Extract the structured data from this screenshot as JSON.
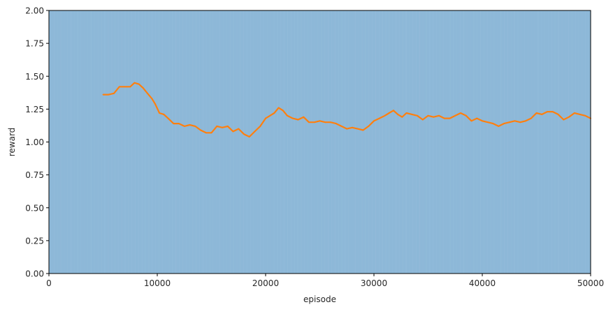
{
  "chart_data": {
    "type": "line",
    "title": "",
    "xlabel": "episode",
    "ylabel": "reward",
    "xlim": [
      0,
      50000
    ],
    "ylim": [
      0,
      2.0
    ],
    "xticks": [
      0,
      10000,
      20000,
      30000,
      40000,
      50000
    ],
    "xtick_labels": [
      "0",
      "10000",
      "20000",
      "30000",
      "40000",
      "50000"
    ],
    "yticks": [
      0,
      0.25,
      0.5,
      0.75,
      1.0,
      1.25,
      1.5,
      1.75,
      2.0
    ],
    "ytick_labels": [
      "0.00",
      "0.25",
      "0.50",
      "0.75",
      "1.00",
      "1.25",
      "1.50",
      "1.75",
      "2.00"
    ],
    "grid": false,
    "background_fill": {
      "description": "dense raw per-episode reward shading covering full range",
      "y_range": [
        0,
        2.0
      ],
      "color": "#8db8d8"
    },
    "series": [
      {
        "color": "#ff7f0e",
        "x": [
          5000,
          5500,
          6000,
          6500,
          7000,
          7500,
          7900,
          8300,
          8700,
          9100,
          9500,
          9800,
          10200,
          10600,
          11000,
          11500,
          12000,
          12500,
          13000,
          13500,
          14000,
          14500,
          15000,
          15500,
          16000,
          16500,
          17000,
          17500,
          18000,
          18500,
          19000,
          19500,
          20000,
          20400,
          20800,
          21200,
          21600,
          22000,
          22500,
          23000,
          23500,
          24000,
          24500,
          25000,
          25500,
          26000,
          26500,
          27000,
          27500,
          28000,
          28500,
          29000,
          29500,
          30000,
          30500,
          31000,
          31400,
          31800,
          32200,
          32600,
          33000,
          33500,
          34000,
          34500,
          35000,
          35500,
          36000,
          36500,
          37000,
          37500,
          38000,
          38500,
          39000,
          39500,
          40000,
          40500,
          41000,
          41500,
          42000,
          42500,
          43000,
          43500,
          44000,
          44500,
          45000,
          45500,
          46000,
          46500,
          47000,
          47500,
          48000,
          48500,
          49000,
          49500,
          50000
        ],
        "y": [
          1.36,
          1.36,
          1.37,
          1.42,
          1.42,
          1.42,
          1.45,
          1.44,
          1.41,
          1.37,
          1.33,
          1.29,
          1.22,
          1.21,
          1.18,
          1.14,
          1.14,
          1.12,
          1.13,
          1.12,
          1.09,
          1.07,
          1.07,
          1.12,
          1.11,
          1.12,
          1.08,
          1.1,
          1.06,
          1.04,
          1.08,
          1.12,
          1.18,
          1.2,
          1.22,
          1.26,
          1.24,
          1.2,
          1.18,
          1.17,
          1.19,
          1.15,
          1.15,
          1.16,
          1.15,
          1.15,
          1.14,
          1.12,
          1.1,
          1.11,
          1.1,
          1.09,
          1.12,
          1.16,
          1.18,
          1.2,
          1.22,
          1.24,
          1.21,
          1.19,
          1.22,
          1.21,
          1.2,
          1.17,
          1.2,
          1.19,
          1.2,
          1.18,
          1.18,
          1.2,
          1.22,
          1.2,
          1.16,
          1.18,
          1.16,
          1.15,
          1.14,
          1.12,
          1.14,
          1.15,
          1.16,
          1.15,
          1.16,
          1.18,
          1.22,
          1.21,
          1.23,
          1.23,
          1.21,
          1.17,
          1.19,
          1.22,
          1.21,
          1.2,
          1.18
        ]
      }
    ]
  }
}
